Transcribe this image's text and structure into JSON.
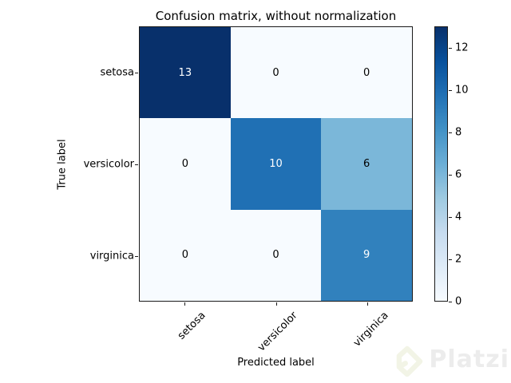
{
  "figure": {
    "title": "Confusion matrix, without normalization",
    "xlabel": "Predicted label",
    "ylabel": "True label"
  },
  "chart_data": {
    "type": "heatmap",
    "title": "Confusion matrix, without normalization",
    "xlabel": "Predicted label",
    "ylabel": "True label",
    "categories": [
      "setosa",
      "versicolor",
      "virginica"
    ],
    "matrix": [
      [
        13,
        0,
        0
      ],
      [
        0,
        10,
        6
      ],
      [
        0,
        0,
        9
      ]
    ],
    "vmin": 0,
    "vmax": 13,
    "colormap_name": "Blues",
    "colormap_stops": [
      "#f7fbff",
      "#deebf7",
      "#c6dbef",
      "#9ecae1",
      "#6baed6",
      "#4292c6",
      "#2171b5",
      "#08519c",
      "#08306b"
    ],
    "cell_colors": [
      [
        "#08306b",
        "#f7fbff",
        "#f7fbff"
      ],
      [
        "#f7fbff",
        "#2070b4",
        "#7bb7d9"
      ],
      [
        "#f7fbff",
        "#f7fbff",
        "#3181bd"
      ]
    ],
    "cell_text_light": "#ffffff",
    "cell_text_dark": "#000000",
    "text_threshold": 6.5,
    "colorbar_ticks": [
      0,
      2,
      4,
      6,
      8,
      10,
      12
    ],
    "legend_position": "right-colorbar",
    "grid": false,
    "x_tick_rotation_deg": 45
  },
  "watermark": {
    "text": "Platzi",
    "logo": "platzi-diamond-logo",
    "text_color": "#ececec",
    "logo_color": "#f2f4e6"
  }
}
